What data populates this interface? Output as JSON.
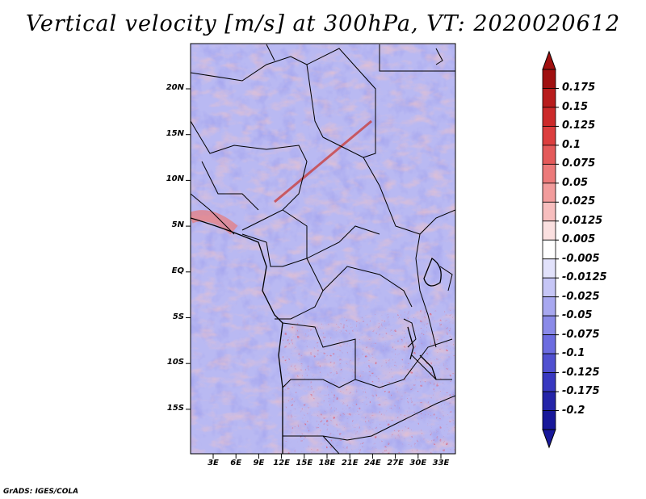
{
  "title": "Vertical velocity [m/s] at 300hPa, VT: 2020020612",
  "credit": "GrADS: IGES/COLA",
  "lat_ticks": [
    "20N",
    "15N",
    "10N",
    "5N",
    "EQ",
    "5S",
    "10S",
    "15S"
  ],
  "lon_ticks": [
    "3E",
    "6E",
    "9E",
    "12E",
    "15E",
    "18E",
    "21E",
    "24E",
    "27E",
    "30E",
    "33E"
  ],
  "colorbar": {
    "labels": [
      "0.175",
      "0.15",
      "0.125",
      "0.1",
      "0.075",
      "0.05",
      "0.025",
      "0.0125",
      "0.005",
      "-0.005",
      "-0.0125",
      "-0.025",
      "-0.05",
      "-0.075",
      "-0.1",
      "-0.125",
      "-0.175",
      "-0.2"
    ],
    "colors": [
      "#a01010",
      "#b81c1c",
      "#cc2a2a",
      "#dc3e3e",
      "#e45a5a",
      "#ec7a7a",
      "#f29c9c",
      "#f7bebe",
      "#fbe0e0",
      "#ffffff",
      "#e2e2fb",
      "#c6c6f6",
      "#a8a8f0",
      "#8a8ae8",
      "#6c6ce0",
      "#5050d0",
      "#3838c0",
      "#2424a8",
      "#18189a"
    ]
  }
}
